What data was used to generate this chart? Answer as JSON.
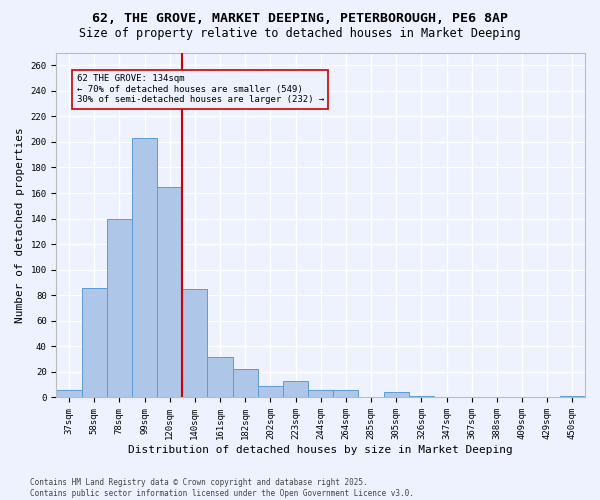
{
  "title_line1": "62, THE GROVE, MARKET DEEPING, PETERBOROUGH, PE6 8AP",
  "title_line2": "Size of property relative to detached houses in Market Deeping",
  "xlabel": "Distribution of detached houses by size in Market Deeping",
  "ylabel": "Number of detached properties",
  "footnote": "Contains HM Land Registry data © Crown copyright and database right 2025.\nContains public sector information licensed under the Open Government Licence v3.0.",
  "categories": [
    "37sqm",
    "58sqm",
    "78sqm",
    "99sqm",
    "120sqm",
    "140sqm",
    "161sqm",
    "182sqm",
    "202sqm",
    "223sqm",
    "244sqm",
    "264sqm",
    "285sqm",
    "305sqm",
    "326sqm",
    "347sqm",
    "367sqm",
    "388sqm",
    "409sqm",
    "429sqm",
    "450sqm"
  ],
  "values": [
    6,
    86,
    140,
    203,
    165,
    85,
    32,
    22,
    9,
    13,
    6,
    6,
    0,
    4,
    1,
    0,
    0,
    0,
    0,
    0,
    1
  ],
  "bar_color": "#aec6e8",
  "bar_edge_color": "#5b9bd5",
  "subject_line_color": "#cc0000",
  "annotation_text": "62 THE GROVE: 134sqm\n← 70% of detached houses are smaller (549)\n30% of semi-detached houses are larger (232) →",
  "annotation_box_color": "#cc0000",
  "ylim": [
    0,
    270
  ],
  "yticks": [
    0,
    20,
    40,
    60,
    80,
    100,
    120,
    140,
    160,
    180,
    200,
    220,
    240,
    260
  ],
  "background_color": "#eef2ff",
  "grid_color": "#ffffff",
  "title_fontsize": 9.5,
  "subtitle_fontsize": 8.5,
  "axis_label_fontsize": 8,
  "tick_fontsize": 6.5,
  "annot_fontsize": 6.5,
  "footnote_fontsize": 5.5
}
